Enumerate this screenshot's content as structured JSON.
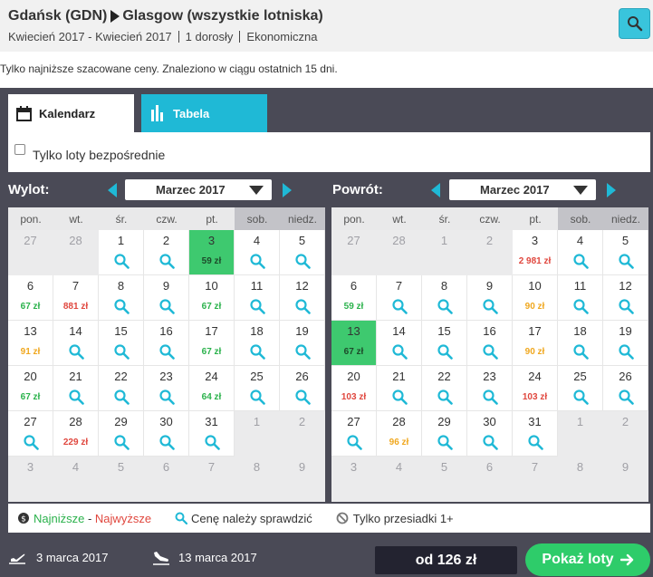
{
  "header": {
    "origin": "Gdańsk (GDN)",
    "destination": "Glasgow (wszystkie lotniska)",
    "dates": "Kwiecień 2017 - Kwiecień 2017",
    "passengers": "1 dorosły",
    "cabin": "Ekonomiczna",
    "search_icon": "search-icon"
  },
  "note": "Tylko najniższe szacowane ceny. Znaleziono w ciągu ostatnich 15 dni.",
  "tabs": {
    "calendar": "Kalendarz",
    "table": "Tabela",
    "calendar_icon": "calendar-icon",
    "table_icon": "bar-chart-icon"
  },
  "direct_only": "Tylko loty bezpośrednie",
  "weekdays": [
    "pon.",
    "wt.",
    "śr.",
    "czw.",
    "pt.",
    "sob.",
    "niedz."
  ],
  "departure": {
    "label": "Wylot:",
    "month": "Marzec 2017",
    "weeks": [
      [
        {
          "d": "27",
          "out": true
        },
        {
          "d": "28",
          "out": true
        },
        {
          "d": "1",
          "s": true
        },
        {
          "d": "2",
          "s": true
        },
        {
          "d": "3",
          "p": "59 zł",
          "sel": true
        },
        {
          "d": "4",
          "s": true
        },
        {
          "d": "5",
          "s": true
        }
      ],
      [
        {
          "d": "6",
          "p": "67 zł",
          "c": "g"
        },
        {
          "d": "7",
          "p": "881 zł",
          "c": "r"
        },
        {
          "d": "8",
          "s": true
        },
        {
          "d": "9",
          "s": true
        },
        {
          "d": "10",
          "p": "67 zł",
          "c": "g"
        },
        {
          "d": "11",
          "s": true
        },
        {
          "d": "12",
          "s": true
        }
      ],
      [
        {
          "d": "13",
          "p": "91 zł",
          "c": "y"
        },
        {
          "d": "14",
          "s": true
        },
        {
          "d": "15",
          "s": true
        },
        {
          "d": "16",
          "s": true
        },
        {
          "d": "17",
          "p": "67 zł",
          "c": "g"
        },
        {
          "d": "18",
          "s": true
        },
        {
          "d": "19",
          "s": true
        }
      ],
      [
        {
          "d": "20",
          "p": "67 zł",
          "c": "g"
        },
        {
          "d": "21",
          "s": true
        },
        {
          "d": "22",
          "s": true
        },
        {
          "d": "23",
          "s": true
        },
        {
          "d": "24",
          "p": "64 zł",
          "c": "g"
        },
        {
          "d": "25",
          "s": true
        },
        {
          "d": "26",
          "s": true
        }
      ],
      [
        {
          "d": "27",
          "s": true
        },
        {
          "d": "28",
          "p": "229 zł",
          "c": "r"
        },
        {
          "d": "29",
          "s": true
        },
        {
          "d": "30",
          "s": true
        },
        {
          "d": "31",
          "s": true
        },
        {
          "d": "1",
          "out": true
        },
        {
          "d": "2",
          "out": true
        }
      ],
      [
        {
          "d": "3",
          "out": true
        },
        {
          "d": "4",
          "out": true
        },
        {
          "d": "5",
          "out": true
        },
        {
          "d": "6",
          "out": true
        },
        {
          "d": "7",
          "out": true
        },
        {
          "d": "8",
          "out": true
        },
        {
          "d": "9",
          "out": true
        }
      ]
    ]
  },
  "return": {
    "label": "Powrót:",
    "month": "Marzec 2017",
    "weeks": [
      [
        {
          "d": "27",
          "out": true
        },
        {
          "d": "28",
          "out": true
        },
        {
          "d": "1",
          "out": true
        },
        {
          "d": "2",
          "out": true
        },
        {
          "d": "3",
          "p": "2 981 zł",
          "c": "r"
        },
        {
          "d": "4",
          "s": true
        },
        {
          "d": "5",
          "s": true
        }
      ],
      [
        {
          "d": "6",
          "p": "59 zł",
          "c": "g"
        },
        {
          "d": "7",
          "s": true
        },
        {
          "d": "8",
          "s": true
        },
        {
          "d": "9",
          "s": true
        },
        {
          "d": "10",
          "p": "90 zł",
          "c": "y"
        },
        {
          "d": "11",
          "s": true
        },
        {
          "d": "12",
          "s": true
        }
      ],
      [
        {
          "d": "13",
          "p": "67 zł",
          "sel": true
        },
        {
          "d": "14",
          "s": true
        },
        {
          "d": "15",
          "s": true
        },
        {
          "d": "16",
          "s": true
        },
        {
          "d": "17",
          "p": "90 zł",
          "c": "y"
        },
        {
          "d": "18",
          "s": true
        },
        {
          "d": "19",
          "s": true
        }
      ],
      [
        {
          "d": "20",
          "p": "103 zł",
          "c": "r"
        },
        {
          "d": "21",
          "s": true
        },
        {
          "d": "22",
          "s": true
        },
        {
          "d": "23",
          "s": true
        },
        {
          "d": "24",
          "p": "103 zł",
          "c": "r"
        },
        {
          "d": "25",
          "s": true
        },
        {
          "d": "26",
          "s": true
        }
      ],
      [
        {
          "d": "27",
          "s": true
        },
        {
          "d": "28",
          "p": "96 zł",
          "c": "y"
        },
        {
          "d": "29",
          "s": true
        },
        {
          "d": "30",
          "s": true
        },
        {
          "d": "31",
          "s": true
        },
        {
          "d": "1",
          "out": true
        },
        {
          "d": "2",
          "out": true
        }
      ],
      [
        {
          "d": "3",
          "out": true
        },
        {
          "d": "4",
          "out": true
        },
        {
          "d": "5",
          "out": true
        },
        {
          "d": "6",
          "out": true
        },
        {
          "d": "7",
          "out": true
        },
        {
          "d": "8",
          "out": true
        },
        {
          "d": "9",
          "out": true
        }
      ]
    ]
  },
  "legend": {
    "lowest": "Najniższe",
    "dash": " - ",
    "highest": "Najwyższe",
    "check": "Cenę należy sprawdzić",
    "stops": "Tylko przesiadki 1+",
    "coin_icon": "coin-icon",
    "magnifier_icon": "magnifier-icon",
    "ban_icon": "ban-icon"
  },
  "footer": {
    "depart_date": "3 marca 2017",
    "return_date": "13 marca 2017",
    "price": "od 126 zł",
    "show_button": "Pokaż loty",
    "takeoff_icon": "plane-takeoff-icon",
    "landing_icon": "plane-landing-icon",
    "arrow_icon": "arrow-right-icon"
  },
  "colors": {
    "accent": "#1fb9d6",
    "selected": "#3ec96f",
    "price_green": "#2bb24c",
    "price_red": "#e0473e",
    "price_yellow": "#f0a820",
    "panel": "#4a4a56",
    "button": "#2ecc6a"
  }
}
